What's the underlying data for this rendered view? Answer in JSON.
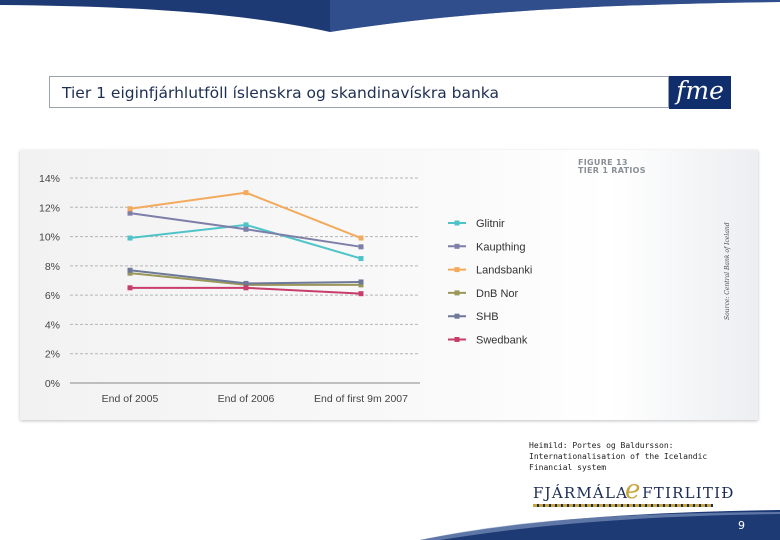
{
  "slide": {
    "title": "Tier 1 eiginfjárhlutföll íslenskra og skandinavískra banka",
    "logo_text": "fme",
    "figure_heading_1": "FIGURE 13",
    "figure_heading_2": "TIER 1 RATIOS",
    "source_vertical": "Source: Central Bank of Iceland",
    "source_note": "Heimild: Portes og Baldursson: Internationalisation of the Icelandic Financial system",
    "wordmark_left": "FJÁRMÁLA",
    "wordmark_e": "e",
    "wordmark_right": "FTIRLITIÐ",
    "page_number": "9",
    "colors": {
      "navy": "#1b2c55",
      "gold": "#c8a53c",
      "swoosh": "#1e3a75"
    }
  },
  "chart_data": {
    "type": "line",
    "categories": [
      "End of 2005",
      "End of 2006",
      "End of first 9m 2007"
    ],
    "ylim": [
      0,
      14
    ],
    "yticks": [
      "0%",
      "2%",
      "4%",
      "6%",
      "8%",
      "10%",
      "12%",
      "14%"
    ],
    "ytick_values": [
      0,
      2,
      4,
      6,
      8,
      10,
      12,
      14
    ],
    "grid": "horizontal dashed",
    "legend_position": "right",
    "series": [
      {
        "name": "Glitnir",
        "color": "#4fc4c8",
        "values": [
          9.9,
          10.8,
          8.5
        ]
      },
      {
        "name": "Kaupthing",
        "color": "#7d7fa8",
        "values": [
          11.6,
          10.5,
          9.3
        ]
      },
      {
        "name": "Landsbanki",
        "color": "#f4aa5d",
        "values": [
          11.9,
          13.0,
          9.9
        ]
      },
      {
        "name": "DnB Nor",
        "color": "#9a9758",
        "values": [
          7.5,
          6.7,
          6.7
        ]
      },
      {
        "name": "SHB",
        "color": "#6e7898",
        "values": [
          7.7,
          6.8,
          6.9
        ]
      },
      {
        "name": "Swedbank",
        "color": "#c83d6a",
        "values": [
          6.5,
          6.5,
          6.1
        ]
      }
    ]
  }
}
